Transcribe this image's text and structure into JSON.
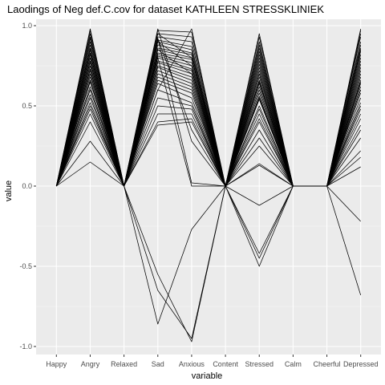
{
  "chart_data": {
    "type": "line",
    "title": "Laodings of Neg def.C.cov for dataset KATHLEEN STRESSKLINIEK",
    "xlabel": "variable",
    "ylabel": "value",
    "categories": [
      "Happy",
      "Angry",
      "Relaxed",
      "Sad",
      "Anxious",
      "Content",
      "Stressed",
      "Calm",
      "Cheerful",
      "Depressed"
    ],
    "y_ticks": [
      -1.0,
      -0.5,
      0.0,
      0.5,
      1.0
    ],
    "y_tick_labels": [
      "-1.0",
      "-0.5",
      "0.0",
      "0.5",
      "1.0"
    ],
    "ylim": [
      -1.05,
      1.04
    ],
    "grid": true,
    "legend": "none",
    "colors": {
      "panel_background": "#ebebeb",
      "grid_major": "#ffffff",
      "grid_minor": "#f5f5f5",
      "line": "#000000",
      "tick_text": "#4d4d4d",
      "tick_mark": "#333333"
    },
    "series": [
      {
        "values": [
          0,
          0.98,
          0,
          0.97,
          0.96,
          0,
          0.95,
          0,
          0,
          0.98
        ]
      },
      {
        "values": [
          0,
          0.97,
          0,
          0.95,
          0.93,
          0,
          0.93,
          0,
          0,
          0.97
        ]
      },
      {
        "values": [
          0,
          0.95,
          0,
          0.93,
          0.9,
          0,
          0.9,
          0,
          0,
          0.95
        ]
      },
      {
        "values": [
          0,
          0.93,
          0,
          0.91,
          0.87,
          0,
          0.88,
          0,
          0,
          0.93
        ]
      },
      {
        "values": [
          0,
          0.92,
          0,
          0.9,
          0.85,
          0,
          0.86,
          0,
          0,
          0.9
        ]
      },
      {
        "values": [
          0,
          0.9,
          0,
          0.88,
          0.83,
          0,
          0.84,
          0,
          0,
          0.88
        ]
      },
      {
        "values": [
          0,
          0.88,
          0,
          0.86,
          0.82,
          0,
          0.82,
          0,
          0,
          0.86
        ]
      },
      {
        "values": [
          0,
          0.86,
          0,
          0.85,
          0.8,
          0,
          0.8,
          0,
          0,
          0.84
        ]
      },
      {
        "values": [
          0,
          0.85,
          0,
          0.83,
          0.79,
          0,
          0.78,
          0,
          0,
          0.82
        ]
      },
      {
        "values": [
          0,
          0.83,
          0,
          0.82,
          0.77,
          0,
          0.76,
          0,
          0,
          0.8
        ]
      },
      {
        "values": [
          0,
          0.82,
          0,
          0.81,
          0.75,
          0,
          0.74,
          0,
          0,
          0.78
        ]
      },
      {
        "values": [
          0,
          0.8,
          0,
          0.8,
          0.73,
          0,
          0.72,
          0,
          0,
          0.76
        ]
      },
      {
        "values": [
          0,
          0.78,
          0,
          0.78,
          0.72,
          0,
          0.7,
          0,
          0,
          0.74
        ]
      },
      {
        "values": [
          0,
          0.77,
          0,
          0.77,
          0.7,
          0,
          0.68,
          0,
          0,
          0.72
        ]
      },
      {
        "values": [
          0,
          0.75,
          0,
          0.75,
          0.68,
          0,
          0.66,
          0,
          0,
          0.7
        ]
      },
      {
        "values": [
          0,
          0.73,
          0,
          0.74,
          0.66,
          0,
          0.64,
          0,
          0,
          0.68
        ]
      },
      {
        "values": [
          0,
          0.72,
          0,
          0.72,
          0.64,
          0,
          0.62,
          0,
          0,
          0.66
        ]
      },
      {
        "values": [
          0,
          0.7,
          0,
          0.7,
          0.62,
          0,
          0.6,
          0,
          0,
          0.64
        ]
      },
      {
        "values": [
          0,
          0.68,
          0,
          0.68,
          0.6,
          0,
          0.58,
          0,
          0,
          0.62
        ]
      },
      {
        "values": [
          0,
          0.66,
          0,
          0.66,
          0.58,
          0,
          0.56,
          0,
          0,
          0.6
        ]
      },
      {
        "values": [
          0,
          0.65,
          0,
          0.64,
          0.55,
          0,
          0.54,
          0,
          0,
          0.58
        ]
      },
      {
        "values": [
          0,
          0.62,
          0,
          0.6,
          0.52,
          0,
          0.5,
          0,
          0,
          0.55
        ]
      },
      {
        "values": [
          0,
          0.6,
          0,
          0.55,
          0.5,
          0,
          0.48,
          0,
          0,
          0.52
        ]
      },
      {
        "values": [
          0,
          0.57,
          0,
          0.5,
          0.48,
          0,
          0.45,
          0,
          0,
          0.48
        ]
      },
      {
        "values": [
          0,
          0.55,
          0,
          0.45,
          0.45,
          0,
          0.42,
          0,
          0,
          0.45
        ]
      },
      {
        "values": [
          0,
          0.52,
          0,
          0.4,
          0.42,
          0,
          0.4,
          0,
          0,
          0.42
        ]
      },
      {
        "values": [
          0,
          0.48,
          0,
          0.38,
          0.4,
          0,
          0.35,
          0,
          0,
          0.38
        ]
      },
      {
        "values": [
          0,
          0.45,
          0,
          0.92,
          0.35,
          0,
          0.3,
          0,
          0,
          0.35
        ]
      },
      {
        "values": [
          0,
          0.4,
          0,
          0.98,
          0.28,
          0,
          0.25,
          0,
          0,
          0.3
        ]
      },
      {
        "values": [
          0,
          0.28,
          0,
          0.92,
          0.02,
          0,
          0.14,
          0,
          0,
          0.22
        ]
      },
      {
        "values": [
          0,
          0.15,
          0,
          0.8,
          0.0,
          0,
          0.13,
          0,
          0,
          0.18
        ]
      },
      {
        "values": [
          0,
          0.7,
          0,
          0.6,
          0.98,
          0,
          -0.12,
          0,
          0,
          0.12
        ]
      },
      {
        "values": [
          0,
          0.85,
          0,
          0.95,
          0.8,
          0,
          -0.42,
          0,
          0,
          -0.22
        ]
      },
      {
        "values": [
          0,
          0.8,
          0,
          0.9,
          0.75,
          0,
          -0.45,
          0,
          0,
          -0.68
        ]
      },
      {
        "values": [
          0,
          0.75,
          0,
          0.85,
          0.7,
          0,
          -0.5,
          0,
          0,
          0.85
        ]
      },
      {
        "values": [
          0,
          0.5,
          0,
          -0.55,
          -0.97,
          0,
          0.65,
          0,
          0,
          0.5
        ]
      },
      {
        "values": [
          0,
          0.6,
          0,
          -0.86,
          -0.27,
          0,
          0.7,
          0,
          0,
          0.6
        ]
      },
      {
        "values": [
          0,
          0.65,
          0,
          -0.65,
          -0.95,
          0,
          0.55,
          0,
          0,
          0.65
        ]
      }
    ]
  }
}
